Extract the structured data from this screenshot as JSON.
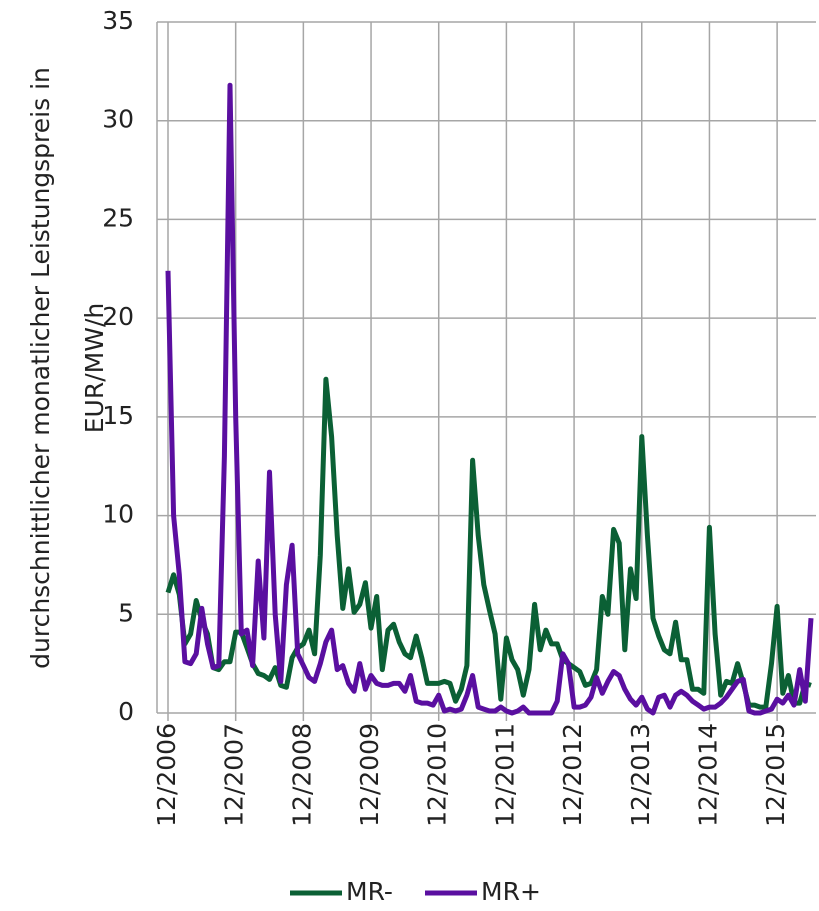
{
  "chart_data": {
    "type": "line",
    "ylabel": [
      "durchschnittlicher monatlicher Leistungspreis in",
      "EUR/MW/h"
    ],
    "categories": [
      "12/2006",
      null,
      null,
      null,
      null,
      null,
      null,
      null,
      null,
      null,
      null,
      null,
      "12/2007",
      null,
      null,
      null,
      null,
      null,
      null,
      null,
      null,
      null,
      null,
      null,
      "12/2008",
      null,
      null,
      null,
      null,
      null,
      null,
      null,
      null,
      null,
      null,
      null,
      "12/2009",
      null,
      null,
      null,
      null,
      null,
      null,
      null,
      null,
      null,
      null,
      null,
      "12/2010",
      null,
      null,
      null,
      null,
      null,
      null,
      null,
      null,
      null,
      null,
      null,
      "12/2011",
      null,
      null,
      null,
      null,
      null,
      null,
      null,
      null,
      null,
      null,
      null,
      "12/2012",
      null,
      null,
      null,
      null,
      null,
      null,
      null,
      null,
      null,
      null,
      null,
      "12/2013",
      null,
      null,
      null,
      null,
      null,
      null,
      null,
      null,
      null,
      null,
      null,
      "12/2014",
      null,
      null,
      null,
      null,
      null,
      null,
      null,
      null,
      null,
      null,
      null,
      "12/2015",
      null,
      null,
      null,
      null,
      null,
      null
    ],
    "series": [
      {
        "name": "MR-",
        "color": "#0b6035",
        "values": [
          6.1,
          7.0,
          6.0,
          3.5,
          4.0,
          5.7,
          4.7,
          4.0,
          2.3,
          2.2,
          2.6,
          2.6,
          4.1,
          4.1,
          3.3,
          2.5,
          2.0,
          1.9,
          1.7,
          2.3,
          1.4,
          1.3,
          2.8,
          3.3,
          3.5,
          4.2,
          3.0,
          8.0,
          16.9,
          14.0,
          9.0,
          5.3,
          7.3,
          5.1,
          5.5,
          6.6,
          4.3,
          5.9,
          2.2,
          4.2,
          4.5,
          3.6,
          3.0,
          2.8,
          3.9,
          2.8,
          1.5,
          1.5,
          1.5,
          1.6,
          1.5,
          0.6,
          1.2,
          2.4,
          12.8,
          9.0,
          6.5,
          5.2,
          4.0,
          0.7,
          3.8,
          2.7,
          2.2,
          0.9,
          2.2,
          5.5,
          3.2,
          4.2,
          3.5,
          3.5,
          2.7,
          2.5,
          2.3,
          2.1,
          1.4,
          1.5,
          2.2,
          5.9,
          5.0,
          9.3,
          8.6,
          3.2,
          7.3,
          5.8,
          14.0,
          9.0,
          4.8,
          3.9,
          3.2,
          3.0,
          4.6,
          2.7,
          2.7,
          1.2,
          1.2,
          1.0,
          9.4,
          4.0,
          0.9,
          1.6,
          1.5,
          2.5,
          1.5,
          0.4,
          0.4,
          0.3,
          0.3,
          2.5,
          5.4,
          1.0,
          1.9,
          0.5,
          0.5,
          1.5,
          1.4
        ]
      },
      {
        "name": "MR+",
        "color": "#5a0fa0",
        "values": [
          22.4,
          10.0,
          7.0,
          2.6,
          2.5,
          3.0,
          5.3,
          3.5,
          2.3,
          2.4,
          13.0,
          31.8,
          15.0,
          4.0,
          4.2,
          2.4,
          7.7,
          3.8,
          12.2,
          5.0,
          1.6,
          6.5,
          8.5,
          3.0,
          2.4,
          1.8,
          1.6,
          2.5,
          3.6,
          4.2,
          2.2,
          2.4,
          1.5,
          1.1,
          2.5,
          1.2,
          1.9,
          1.5,
          1.4,
          1.4,
          1.5,
          1.5,
          1.1,
          1.9,
          0.6,
          0.5,
          0.5,
          0.4,
          0.9,
          0.1,
          0.2,
          0.1,
          0.2,
          0.9,
          1.9,
          0.3,
          0.2,
          0.1,
          0.1,
          0.3,
          0.1,
          0,
          0.1,
          0.3,
          0,
          0,
          0,
          0,
          0,
          0.6,
          3.0,
          2.5,
          0.3,
          0.3,
          0.4,
          0.8,
          1.8,
          1.0,
          1.6,
          2.1,
          1.9,
          1.2,
          0.7,
          0.4,
          0.8,
          0.2,
          0,
          0.8,
          0.9,
          0.3,
          0.9,
          1.1,
          0.9,
          0.6,
          0.4,
          0.2,
          0.3,
          0.3,
          0.5,
          0.8,
          1.2,
          1.6,
          1.7,
          0.1,
          0,
          0,
          0.1,
          0.2,
          0.7,
          0.5,
          0.9,
          0.4,
          2.2,
          0.6,
          4.8
        ]
      }
    ],
    "ylim": [
      0,
      35
    ],
    "yticks": [
      0,
      5,
      10,
      15,
      20,
      25,
      30,
      35
    ],
    "grid": true,
    "legend": "bottom"
  }
}
